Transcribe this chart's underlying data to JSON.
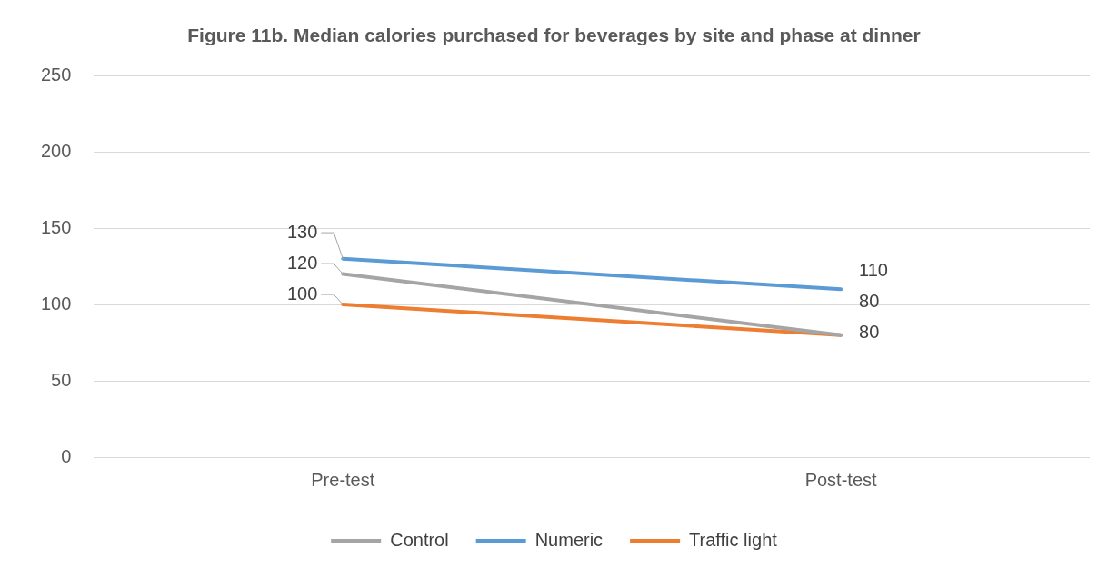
{
  "chart_data": {
    "type": "line",
    "title": "Figure 11b. Median calories purchased for beverages by site and phase at dinner",
    "categories": [
      "Pre-test",
      "Post-test"
    ],
    "series": [
      {
        "name": "Control",
        "color": "#a5a5a5",
        "values": [
          120,
          80
        ]
      },
      {
        "name": "Numeric",
        "color": "#5b9bd5",
        "values": [
          130,
          110
        ]
      },
      {
        "name": "Traffic light",
        "color": "#ed7d31",
        "values": [
          100,
          80
        ]
      }
    ],
    "ylim": [
      0,
      250
    ],
    "yticks": [
      0,
      50,
      100,
      150,
      200,
      250
    ],
    "grid": "y",
    "legend": "bottom",
    "marker": "none",
    "data_labels": true
  }
}
